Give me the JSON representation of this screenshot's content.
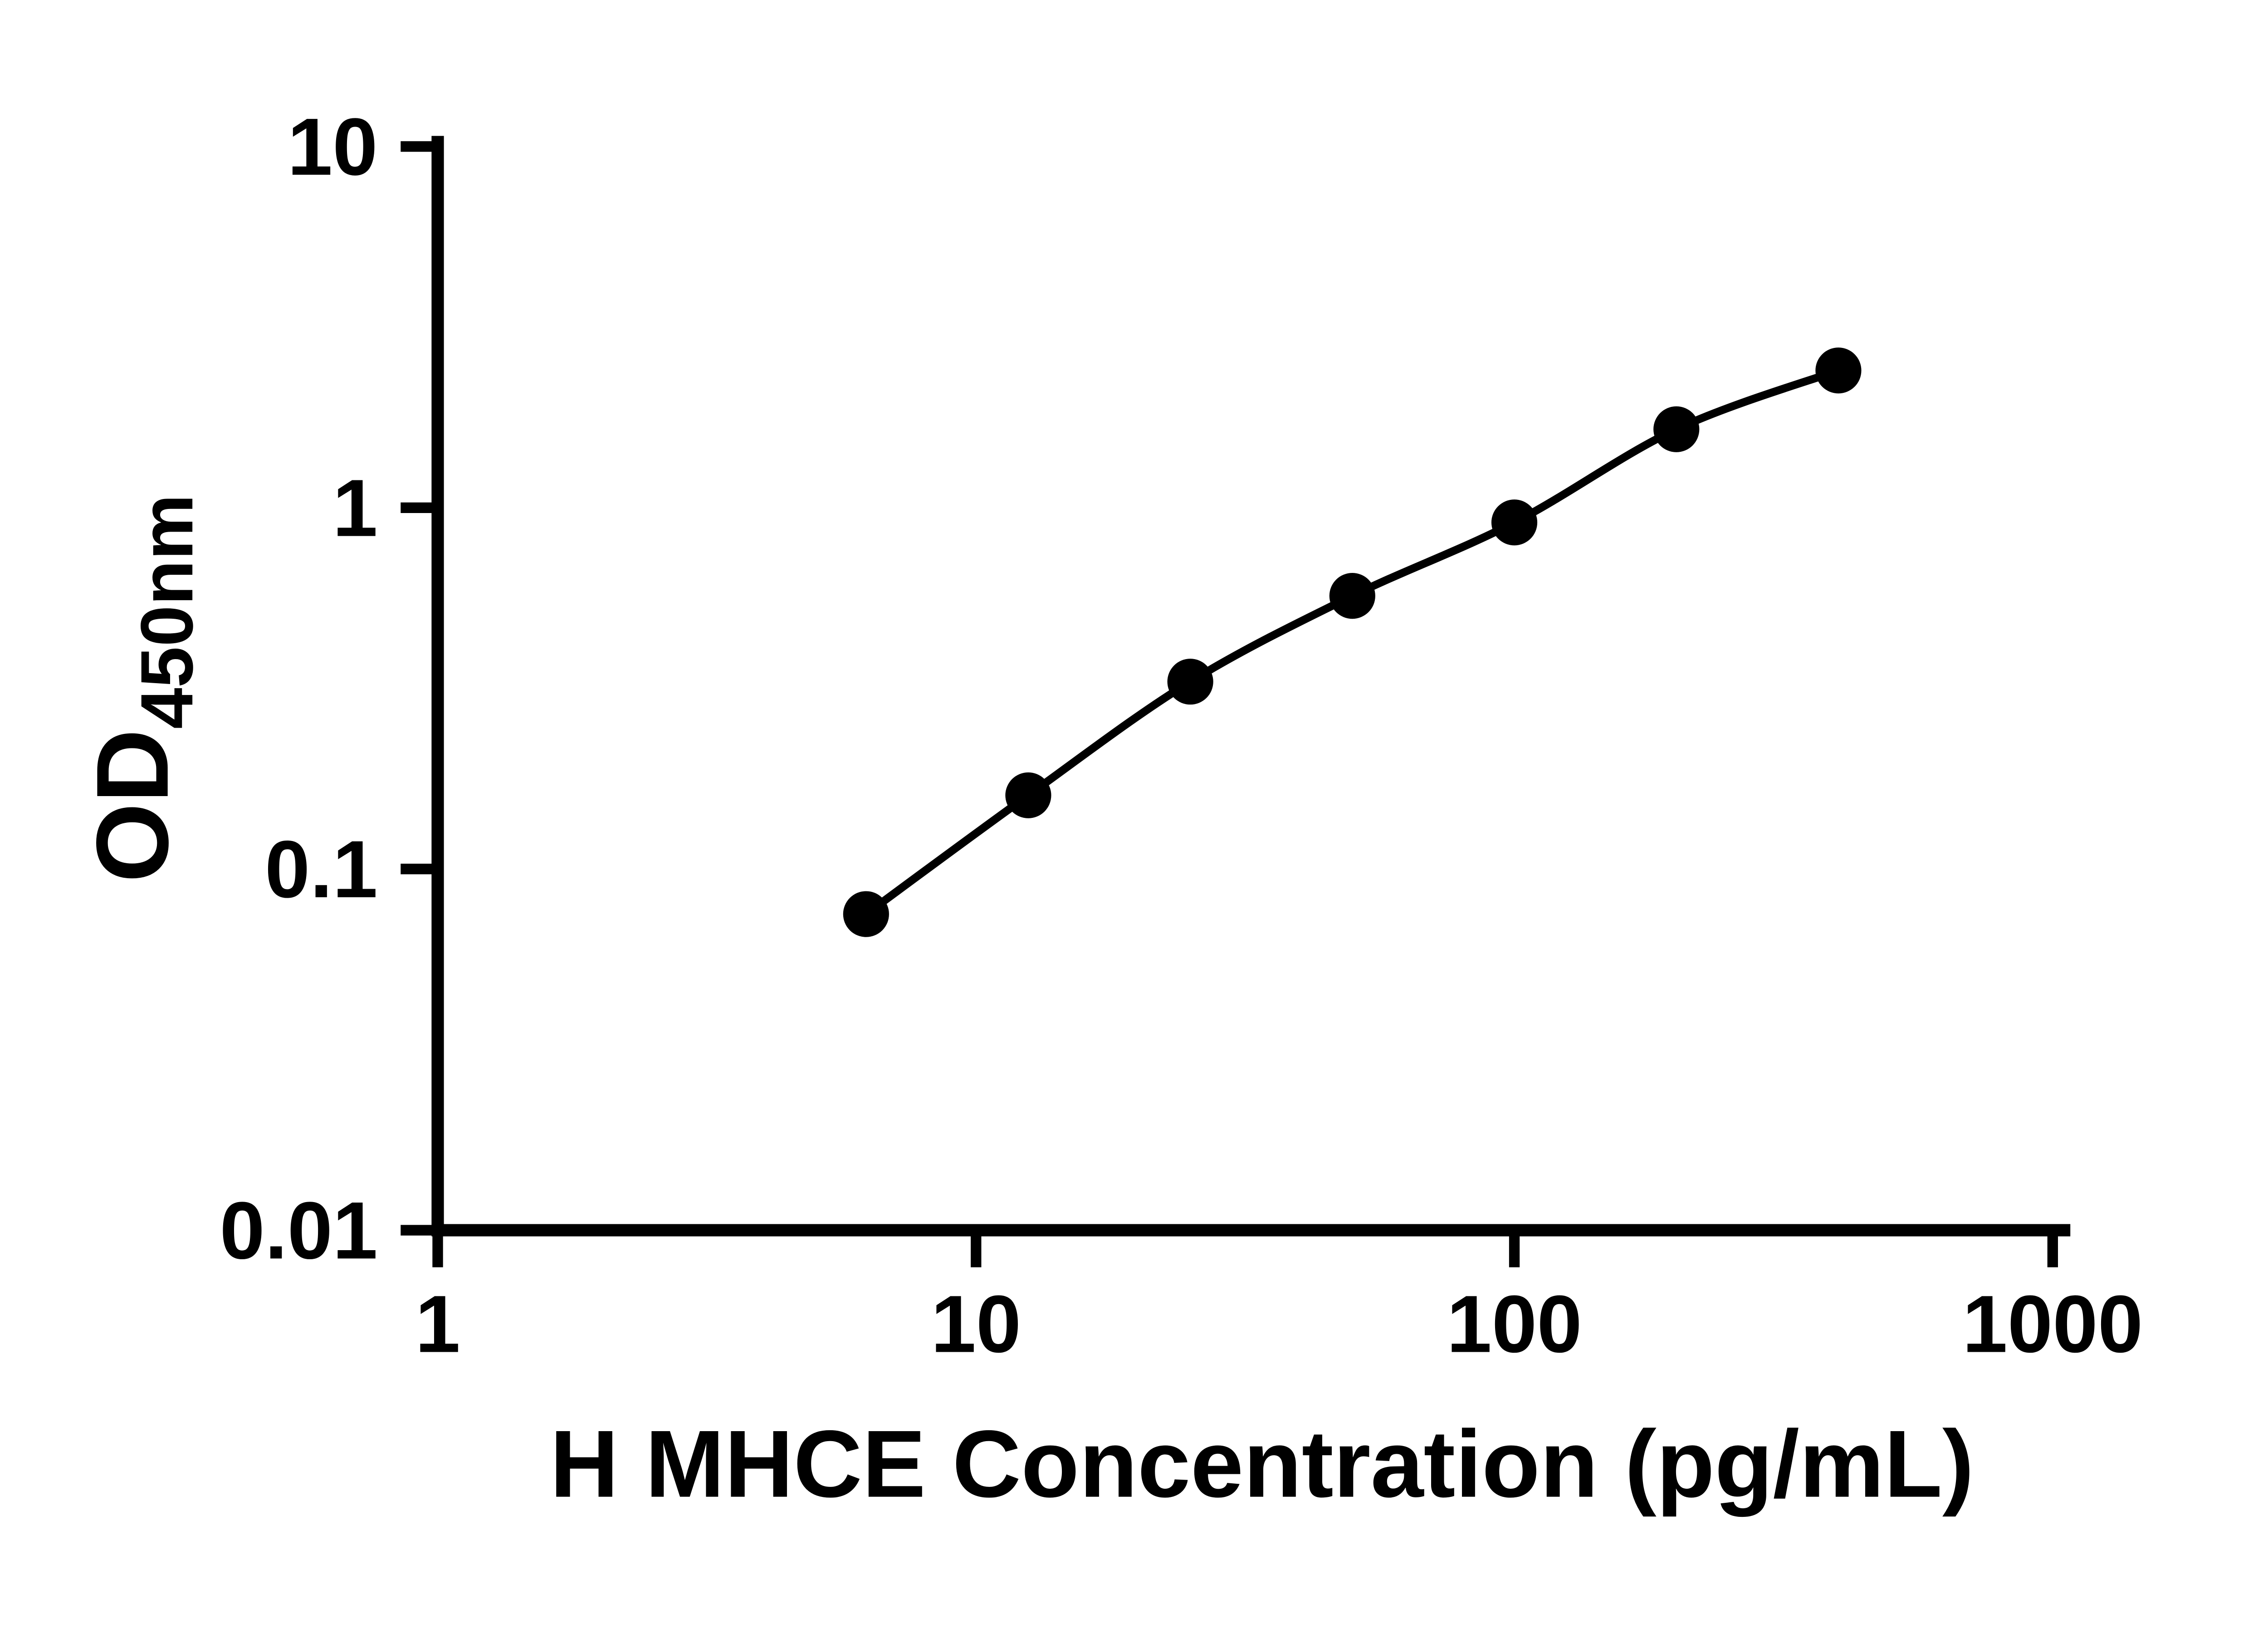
{
  "chart_data": {
    "type": "scatter",
    "title": "",
    "xlabel": "H MHCE Concentration (pg/mL)",
    "ylabel": "OD",
    "ylabel_sub": "450nm",
    "x_scale": "log",
    "y_scale": "log",
    "xlim": [
      1,
      1000
    ],
    "ylim": [
      0.01,
      10
    ],
    "x_ticks": [
      1,
      10,
      100,
      1000
    ],
    "x_tick_labels": [
      "1",
      "10",
      "100",
      "1000"
    ],
    "y_ticks": [
      0.01,
      0.1,
      1,
      10
    ],
    "y_tick_labels": [
      "0.01",
      "0.1",
      "1",
      "10"
    ],
    "grid": false,
    "legend": "none",
    "series": [
      {
        "marker": "filled-circle",
        "line": "smooth",
        "color": "#000000",
        "points": [
          {
            "x": 6.25,
            "y": 0.075
          },
          {
            "x": 12.5,
            "y": 0.16
          },
          {
            "x": 25,
            "y": 0.33
          },
          {
            "x": 50,
            "y": 0.57
          },
          {
            "x": 100,
            "y": 0.91
          },
          {
            "x": 200,
            "y": 1.65
          },
          {
            "x": 400,
            "y": 2.4
          }
        ]
      }
    ]
  },
  "colors": {
    "background": "#ffffff",
    "axis": "#000000",
    "marker": "#000000",
    "curve": "#000000",
    "text": "#000000"
  }
}
